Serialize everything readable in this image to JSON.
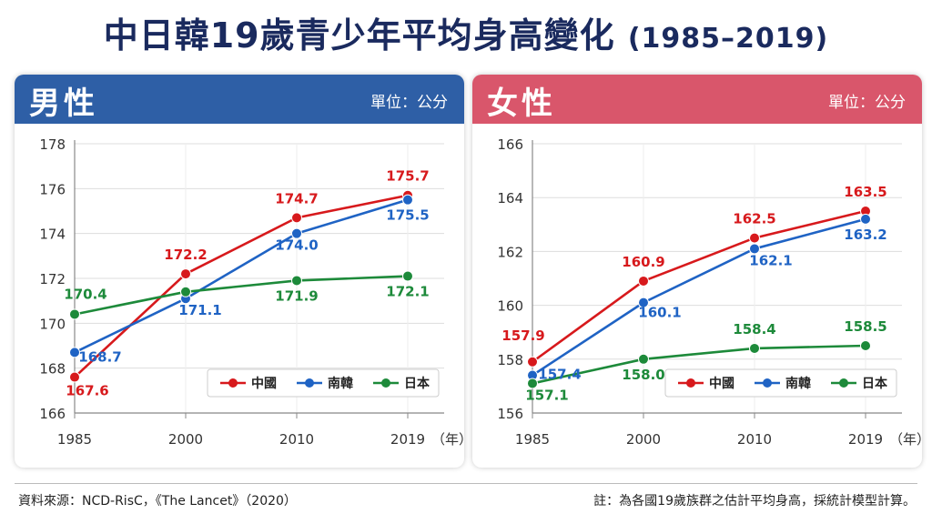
{
  "title_main": "中日韓19歲青少年平均身高變化",
  "title_years": "(1985–2019)",
  "unit": "單位：公分",
  "source": "資料來源：NCD-RisC，《The Lancet》（2020）",
  "note": "註：為各國19歲族群之估計平均身高，採統計模型計算。",
  "x_unit": "（年）",
  "legend": [
    "中國",
    "南韓",
    "日本"
  ],
  "colors": {
    "china": "#d7191c",
    "korea": "#1f63c4",
    "japan": "#1d8a3a",
    "male": "#2e5fa6",
    "female": "#d9566b"
  },
  "chart_data": [
    {
      "type": "line",
      "title": "男性",
      "x": [
        1985,
        2000,
        2010,
        2019
      ],
      "x_tick_labels": [
        "1985",
        "2000",
        "2010",
        "2019"
      ],
      "ylim": [
        166,
        178
      ],
      "yticks": [
        166,
        168,
        170,
        172,
        174,
        176,
        178
      ],
      "grid": true,
      "legend_position": "bottom-right",
      "series": [
        {
          "name": "中國",
          "key": "china",
          "values": [
            167.6,
            172.2,
            174.7,
            175.7
          ]
        },
        {
          "name": "南韓",
          "key": "korea",
          "values": [
            168.7,
            171.1,
            174.0,
            175.5
          ]
        },
        {
          "name": "日本",
          "key": "japan",
          "values": [
            170.4,
            171.4,
            171.9,
            172.1
          ]
        }
      ],
      "labels": [
        {
          "series": "china",
          "index": 0,
          "text": "167.6"
        },
        {
          "series": "china",
          "index": 1,
          "text": "172.2"
        },
        {
          "series": "china",
          "index": 2,
          "text": "174.7"
        },
        {
          "series": "china",
          "index": 3,
          "text": "175.7"
        },
        {
          "series": "korea",
          "index": 0,
          "text": "168.7"
        },
        {
          "series": "korea",
          "index": 1,
          "text": "171.1"
        },
        {
          "series": "korea",
          "index": 2,
          "text": "174.0"
        },
        {
          "series": "korea",
          "index": 3,
          "text": "175.5"
        },
        {
          "series": "japan",
          "index": 0,
          "text": "170.4"
        },
        {
          "series": "japan",
          "index": 2,
          "text": "171.9"
        },
        {
          "series": "japan",
          "index": 3,
          "text": "172.1"
        }
      ]
    },
    {
      "type": "line",
      "title": "女性",
      "x": [
        1985,
        2000,
        2010,
        2019
      ],
      "x_tick_labels": [
        "1985",
        "2000",
        "2010",
        "2019"
      ],
      "ylim": [
        156,
        166
      ],
      "yticks": [
        156,
        158,
        160,
        162,
        164,
        166
      ],
      "grid": true,
      "legend_position": "bottom-right",
      "series": [
        {
          "name": "中國",
          "key": "china",
          "values": [
            157.9,
            160.9,
            162.5,
            163.5
          ]
        },
        {
          "name": "南韓",
          "key": "korea",
          "values": [
            157.4,
            160.1,
            162.1,
            163.2
          ]
        },
        {
          "name": "日本",
          "key": "japan",
          "values": [
            157.1,
            158.0,
            158.4,
            158.5
          ]
        }
      ],
      "labels": [
        {
          "series": "china",
          "index": 0,
          "text": "157.9"
        },
        {
          "series": "china",
          "index": 1,
          "text": "160.9"
        },
        {
          "series": "china",
          "index": 2,
          "text": "162.5"
        },
        {
          "series": "china",
          "index": 3,
          "text": "163.5"
        },
        {
          "series": "korea",
          "index": 0,
          "text": "157.4"
        },
        {
          "series": "korea",
          "index": 1,
          "text": "160.1"
        },
        {
          "series": "korea",
          "index": 2,
          "text": "162.1"
        },
        {
          "series": "korea",
          "index": 3,
          "text": "163.2"
        },
        {
          "series": "japan",
          "index": 0,
          "text": "157.1"
        },
        {
          "series": "japan",
          "index": 1,
          "text": "158.0"
        },
        {
          "series": "japan",
          "index": 2,
          "text": "158.4"
        },
        {
          "series": "japan",
          "index": 3,
          "text": "158.5"
        }
      ]
    }
  ]
}
